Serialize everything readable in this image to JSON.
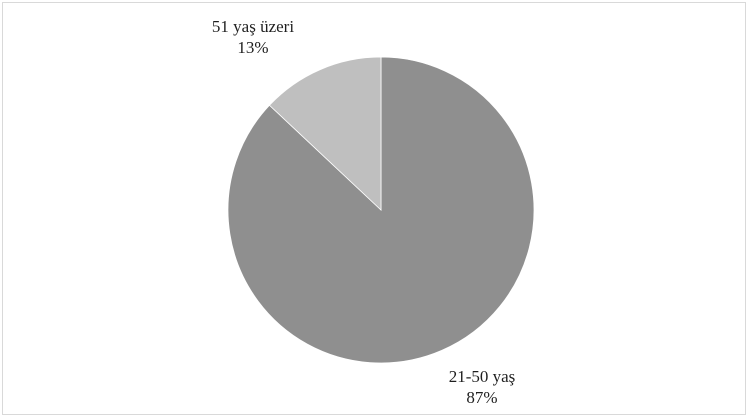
{
  "chart_data": {
    "type": "pie",
    "title": "",
    "slices": [
      {
        "label": "21-50 yaş",
        "value": 87,
        "value_label": "87%",
        "color": "#8f8f8f"
      },
      {
        "label": "51 yaş üzeri",
        "value": 13,
        "value_label": "13%",
        "color": "#bfbfbf"
      }
    ],
    "legend": "none",
    "data_labels": "outside"
  }
}
